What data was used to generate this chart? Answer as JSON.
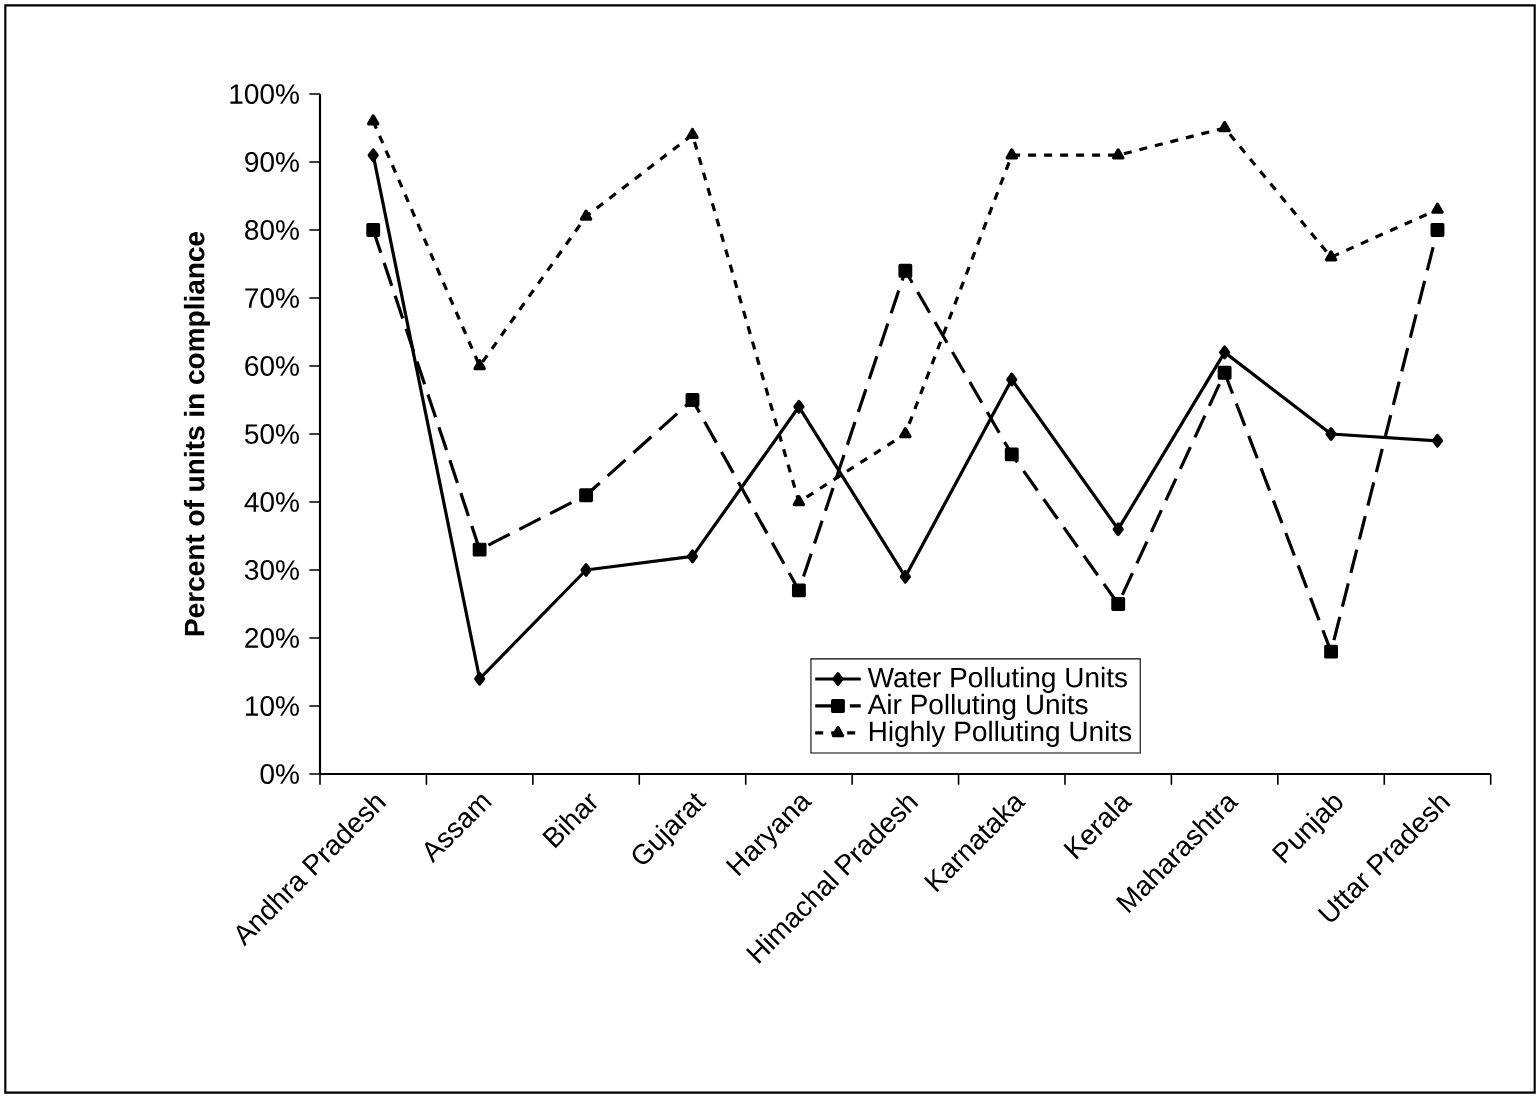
{
  "chart_data": {
    "type": "line",
    "ylabel": "Percent of units in compliance",
    "categories": [
      "Andhra Pradesh",
      "Assam",
      "Bihar",
      "Gujarat",
      "Haryana",
      "Himachal Pradesh",
      "Karnataka",
      "Kerala",
      "Maharashtra",
      "Punjab",
      "Uttar Pradesh"
    ],
    "series": [
      {
        "name": "Water Polluting Units",
        "color": "#000000",
        "marker": "diamond",
        "line_style": "solid",
        "values": [
          91,
          14,
          30,
          32,
          54,
          29,
          58,
          36,
          62,
          50,
          49
        ]
      },
      {
        "name": "Air Polluting Units",
        "color": "#000000",
        "marker": "square",
        "line_style": "dashed",
        "values": [
          80,
          33,
          41,
          55,
          27,
          74,
          47,
          25,
          59,
          18,
          80
        ]
      },
      {
        "name": "Highly Polluting Units",
        "color": "#000000",
        "marker": "triangle",
        "line_style": "dotted",
        "values": [
          96,
          60,
          82,
          94,
          40,
          50,
          91,
          91,
          95,
          76,
          83
        ]
      }
    ],
    "ylim": [
      0,
      100
    ],
    "yticks": [
      {
        "value": 0,
        "label": "0%"
      },
      {
        "value": 10,
        "label": "10%"
      },
      {
        "value": 20,
        "label": "20%"
      },
      {
        "value": 30,
        "label": "30%"
      },
      {
        "value": 40,
        "label": "40%"
      },
      {
        "value": 50,
        "label": "50%"
      },
      {
        "value": 60,
        "label": "60%"
      },
      {
        "value": 70,
        "label": "70%"
      },
      {
        "value": 80,
        "label": "80%"
      },
      {
        "value": 90,
        "label": "90%"
      },
      {
        "value": 100,
        "label": "100%"
      }
    ],
    "grid": false,
    "legend": "bottom"
  }
}
